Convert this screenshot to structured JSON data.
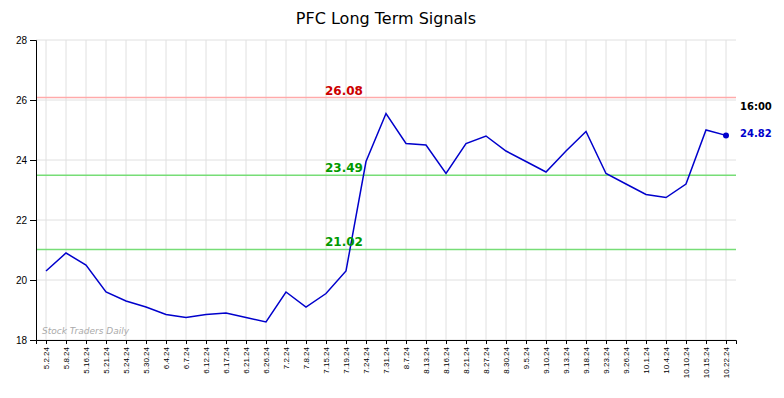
{
  "chart_data": {
    "type": "line",
    "title": "PFC Long Term Signals",
    "categories": [
      "5.2.24",
      "5.8.24",
      "5.16.24",
      "5.21.24",
      "5.24.24",
      "5.30.24",
      "6.4.24",
      "6.7.24",
      "6.12.24",
      "6.17.24",
      "6.21.24",
      "6.26.24",
      "7.2.24",
      "7.8.24",
      "7.15.24",
      "7.19.24",
      "7.24.24",
      "7.31.24",
      "8.7.24",
      "8.13.24",
      "8.16.24",
      "8.21.24",
      "8.27.24",
      "8.30.24",
      "9.5.24",
      "9.10.24",
      "9.13.24",
      "9.18.24",
      "9.23.24",
      "9.26.24",
      "10.1.24",
      "10.4.24",
      "10.10.24",
      "10.15.24",
      "10.22.24"
    ],
    "values": [
      20.3,
      20.9,
      20.5,
      19.6,
      19.3,
      19.1,
      18.85,
      18.75,
      18.85,
      18.9,
      18.75,
      18.6,
      19.6,
      19.1,
      19.55,
      20.3,
      23.95,
      25.55,
      24.55,
      24.5,
      23.55,
      24.55,
      24.8,
      24.3,
      23.95,
      23.6,
      24.3,
      24.95,
      23.55,
      23.2,
      22.85,
      22.75,
      23.2,
      25.0,
      24.82
    ],
    "color": "#0000cc",
    "ylim": [
      18,
      28
    ],
    "yticks": [
      18,
      20,
      22,
      24,
      26,
      28
    ],
    "grid": true,
    "reference_lines": [
      {
        "y": 26.08,
        "color": "#ffaaaa",
        "label": "26.08",
        "label_color": "#cc0000"
      },
      {
        "y": 23.49,
        "color": "#77dd77",
        "label": "23.49",
        "label_color": "#009900"
      },
      {
        "y": 21.02,
        "color": "#77dd77",
        "label": "21.02",
        "label_color": "#009900"
      }
    ],
    "annotations": [
      {
        "text": "16:00"
      },
      {
        "text": "24.82",
        "color": "#0000cc"
      },
      {
        "text": "Stock Traders Daily",
        "color": "#aaaaaa"
      }
    ]
  }
}
